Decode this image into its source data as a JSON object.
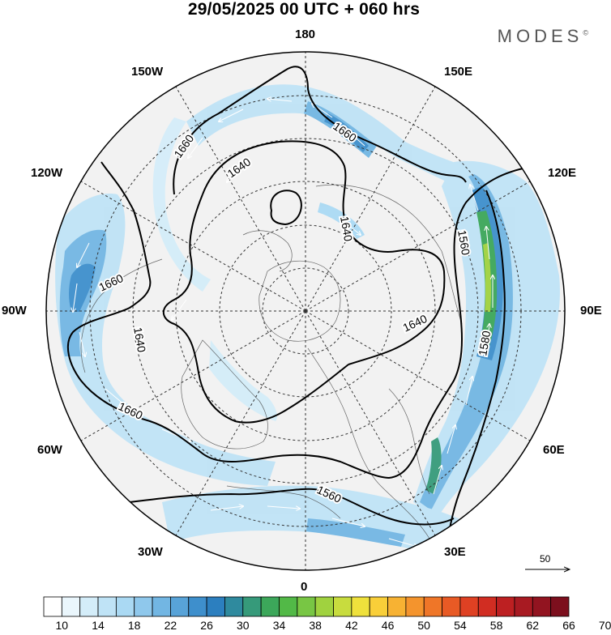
{
  "title": "29/05/2025  00 UTC  + 060 hrs",
  "brand": "MODES",
  "brand_mark": "©",
  "longitude_labels": {
    "top": "180",
    "bottom": "0",
    "left": "90W",
    "right": "90E",
    "nw1": "150W",
    "nw2": "120W",
    "ne1": "150E",
    "ne2": "120E",
    "sw1": "60W",
    "sw2": "30W",
    "se1": "60E",
    "se2": "30E"
  },
  "contours": [
    {
      "label": "1660"
    },
    {
      "label": "1640"
    },
    {
      "label": "1660"
    },
    {
      "label": "1640"
    },
    {
      "label": "1640"
    },
    {
      "label": "1660"
    },
    {
      "label": "1640"
    },
    {
      "label": "1660"
    },
    {
      "label": "1560"
    },
    {
      "label": "1580"
    },
    {
      "label": "1560"
    }
  ],
  "vector_scale": {
    "value": "50"
  },
  "colorbar": {
    "colors": [
      "#ffffff",
      "#eaf6fc",
      "#d4edf9",
      "#bfe3f6",
      "#aad9f3",
      "#8fc8ec",
      "#72b6e3",
      "#58a3d8",
      "#3e8fcc",
      "#2c7fbf",
      "#2f8a9e",
      "#369a7a",
      "#3ca75a",
      "#52b947",
      "#78c644",
      "#a0d23f",
      "#c8dc3e",
      "#efe13c",
      "#f9cf39",
      "#f7b233",
      "#f4942d",
      "#ef7628",
      "#e85a25",
      "#df4123",
      "#d12d22",
      "#bd2022",
      "#a81a22",
      "#921420",
      "#7c0f1d"
    ],
    "tick_labels": [
      "10",
      "14",
      "18",
      "22",
      "26",
      "30",
      "34",
      "38",
      "42",
      "46",
      "50",
      "54",
      "58",
      "62",
      "66",
      "70"
    ]
  },
  "colors": {
    "shading_low": "#bfe3f6",
    "shading_mid": "#3e8fcc",
    "shading_high": "#78c644",
    "land": "#f2f2f2"
  }
}
